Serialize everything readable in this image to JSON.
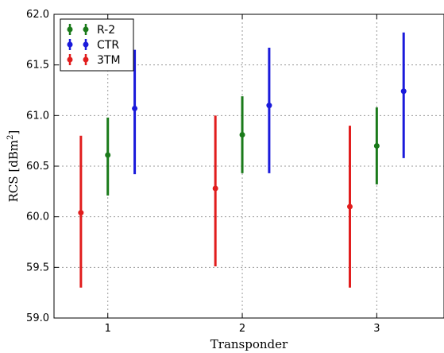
{
  "chart_data": {
    "type": "errorbar",
    "xlabel": "Transponder",
    "ylabel": "RCS  [dBm",
    "ylabel_sup": "2",
    "ylabel_close": "]",
    "xlim": [
      0.6,
      3.5
    ],
    "ylim": [
      59.0,
      62.0
    ],
    "x_ticks": [
      1,
      2,
      3
    ],
    "x_tick_labels": [
      "1",
      "2",
      "3"
    ],
    "y_ticks": [
      59.0,
      59.5,
      60.0,
      60.5,
      61.0,
      61.5,
      62.0
    ],
    "y_tick_labels": [
      "59.0",
      "59.5",
      "60.0",
      "60.5",
      "61.0",
      "61.5",
      "62.0"
    ],
    "grid": true,
    "legend_position": "top-left",
    "series": [
      {
        "name": "R-2",
        "color": "#1a7a1a",
        "points": [
          {
            "x": 1.0,
            "y": 60.61,
            "low": 60.21,
            "high": 60.98
          },
          {
            "x": 2.0,
            "y": 60.81,
            "low": 60.43,
            "high": 61.19
          },
          {
            "x": 3.0,
            "y": 60.7,
            "low": 60.32,
            "high": 61.08
          }
        ]
      },
      {
        "name": "CTR",
        "color": "#1a1adb",
        "points": [
          {
            "x": 1.2,
            "y": 61.07,
            "low": 60.42,
            "high": 61.65
          },
          {
            "x": 2.2,
            "y": 61.1,
            "low": 60.43,
            "high": 61.67
          },
          {
            "x": 3.2,
            "y": 61.24,
            "low": 60.58,
            "high": 61.82
          }
        ]
      },
      {
        "name": "3TM",
        "color": "#e11d1d",
        "points": [
          {
            "x": 0.8,
            "y": 60.04,
            "low": 59.3,
            "high": 60.8
          },
          {
            "x": 1.8,
            "y": 60.28,
            "low": 59.51,
            "high": 61.0
          },
          {
            "x": 2.8,
            "y": 60.1,
            "low": 59.3,
            "high": 60.9
          }
        ]
      }
    ]
  }
}
